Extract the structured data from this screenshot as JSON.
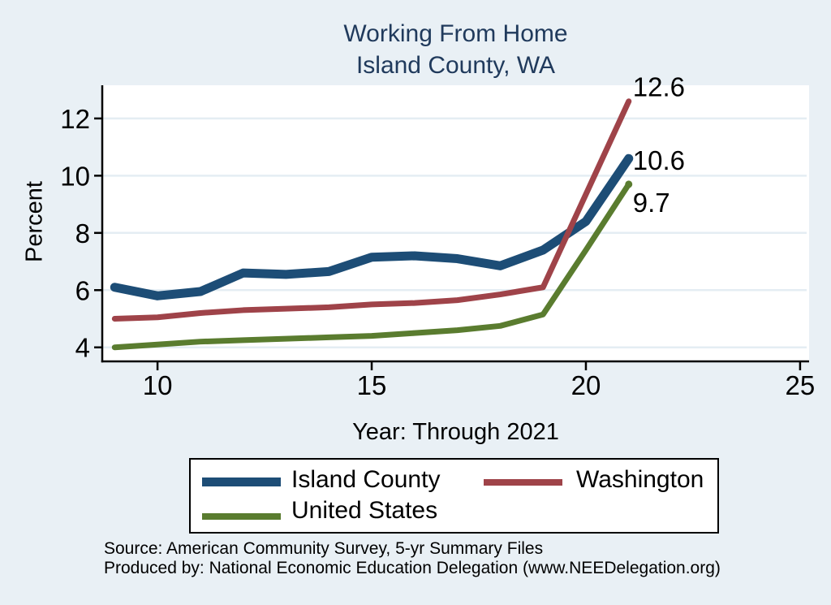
{
  "title": {
    "line1": "Working From Home",
    "line2": "Island County, WA"
  },
  "chart_data": {
    "type": "line",
    "title": "Working From Home Island County, WA",
    "xlabel": "Year: Through 2021",
    "ylabel": "Percent",
    "x": [
      9,
      10,
      11,
      12,
      13,
      14,
      15,
      16,
      17,
      18,
      19,
      20,
      21
    ],
    "series": [
      {
        "name": "Island County",
        "color": "#1d4d76",
        "line_width": 11,
        "values": [
          6.1,
          5.8,
          5.95,
          6.6,
          6.55,
          6.65,
          7.15,
          7.2,
          7.1,
          6.85,
          7.4,
          8.4,
          10.6
        ],
        "end_label": "10.6",
        "end_label_offset": [
          5,
          14
        ],
        "end_marker": false
      },
      {
        "name": "United States",
        "color": "#5a7c2f",
        "line_width": 7,
        "values": [
          4.0,
          4.1,
          4.2,
          4.25,
          4.3,
          4.35,
          4.4,
          4.5,
          4.6,
          4.75,
          5.15,
          7.4,
          9.7
        ],
        "end_label": "9.7",
        "end_label_offset": [
          5,
          34
        ],
        "end_marker": true
      },
      {
        "name": "Washington",
        "color": "#9f4349",
        "line_width": 7,
        "values": [
          5.0,
          5.05,
          5.2,
          5.3,
          5.35,
          5.4,
          5.5,
          5.55,
          5.65,
          5.85,
          6.1,
          9.35,
          12.6
        ],
        "end_label": "12.6",
        "end_label_offset": [
          5,
          -6
        ],
        "end_marker": false
      }
    ],
    "x_ticks": [
      10,
      15,
      20,
      25
    ],
    "y_ticks": [
      4,
      6,
      8,
      10,
      12
    ],
    "xlim": [
      8.71,
      25.21
    ],
    "ylim": [
      3.51,
      13.16
    ],
    "grid": "horizontal",
    "legend_position": "bottom"
  },
  "legend": {
    "items": [
      {
        "label": "Island County",
        "color": "#1d4d76",
        "thickness": 11
      },
      {
        "label": "Washington",
        "color": "#9f4349",
        "thickness": 8
      },
      {
        "label": "United States",
        "color": "#5a7c2f",
        "thickness": 8
      }
    ]
  },
  "source": {
    "line1": "Source: American Community Survey, 5-yr Summary Files",
    "line2": "Produced by: National Economic Education Delegation (www.NEEDelegation.org)"
  },
  "colors": {
    "background": "#e9f0f5",
    "plot_background": "#ffffff",
    "gridline": "#e4edf3",
    "axis": "#000000",
    "title_text": "#203a5c"
  }
}
